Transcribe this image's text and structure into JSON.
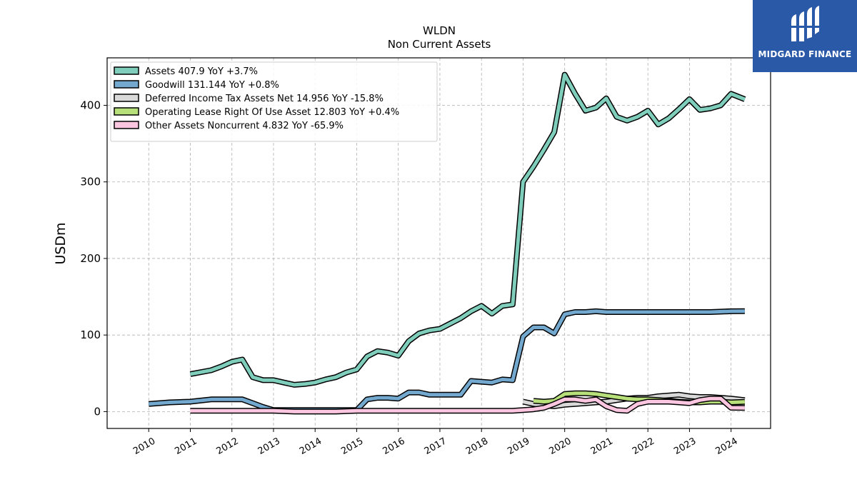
{
  "chart_data": {
    "type": "line",
    "title": "WLDN",
    "subtitle": "Non Current  Assets",
    "ylabel": "USDm",
    "xlabel": "",
    "xlim": [
      2009.0,
      2024.95
    ],
    "ylim": [
      -22,
      462
    ],
    "yticks": [
      0,
      100,
      200,
      300,
      400
    ],
    "xticks": [
      "2010",
      "2011",
      "2012",
      "2013",
      "2014",
      "2015",
      "2016",
      "2017",
      "2018",
      "2019",
      "2020",
      "2021",
      "2022",
      "2023",
      "2024"
    ],
    "grid": true,
    "legend_position": "top-left",
    "series": [
      {
        "name": "Assets  407.9 YoY +3.7%",
        "color": "#7fcdbb",
        "x": [
          2011.0,
          2011.5,
          2011.75,
          2012.0,
          2012.25,
          2012.5,
          2012.75,
          2013.0,
          2013.25,
          2013.5,
          2013.75,
          2014.0,
          2014.25,
          2014.5,
          2014.75,
          2015.0,
          2015.25,
          2015.5,
          2015.75,
          2016.0,
          2016.25,
          2016.5,
          2016.75,
          2017.0,
          2017.25,
          2017.5,
          2017.75,
          2018.0,
          2018.25,
          2018.5,
          2018.75,
          2019.0,
          2019.25,
          2019.5,
          2019.75,
          2020.0,
          2020.25,
          2020.5,
          2020.75,
          2021.0,
          2021.25,
          2021.5,
          2021.75,
          2022.0,
          2022.25,
          2022.5,
          2022.75,
          2023.0,
          2023.25,
          2023.5,
          2023.75,
          2024.0,
          2024.33
        ],
        "y": [
          49,
          54,
          59,
          65,
          68,
          45,
          41,
          41,
          38,
          35,
          36,
          38,
          42,
          45,
          51,
          55,
          72,
          79,
          77,
          73,
          92,
          102,
          106,
          108,
          115,
          122,
          131,
          138,
          128,
          138,
          140,
          300,
          320,
          342,
          365,
          440,
          415,
          393,
          397,
          409,
          385,
          380,
          385,
          393,
          375,
          383,
          395,
          408,
          394,
          396,
          400,
          415,
          407.9
        ]
      },
      {
        "name": "Goodwill  131.144 YoY +0.8%",
        "color": "#74a9cf",
        "x": [
          2010.0,
          2010.5,
          2011.0,
          2011.5,
          2012.0,
          2012.25,
          2012.5,
          2012.75,
          2013.0,
          2013.5,
          2014.0,
          2014.5,
          2015.0,
          2015.25,
          2015.5,
          2015.75,
          2016.0,
          2016.25,
          2016.5,
          2016.75,
          2017.0,
          2017.25,
          2017.5,
          2017.75,
          2018.0,
          2018.25,
          2018.5,
          2018.75,
          2019.0,
          2019.25,
          2019.5,
          2019.75,
          2020.0,
          2020.25,
          2020.5,
          2020.75,
          2021.0,
          2021.5,
          2022.0,
          2022.5,
          2023.0,
          2023.5,
          2024.0,
          2024.33
        ],
        "y": [
          10,
          12,
          13,
          16,
          16,
          16,
          11,
          6,
          2,
          2,
          2,
          2,
          2,
          16,
          18,
          18,
          17,
          25,
          25,
          22,
          22,
          22,
          22,
          40,
          39,
          38,
          42,
          41,
          98,
          110,
          110,
          102,
          127,
          130,
          130,
          131,
          130,
          130,
          130,
          130,
          130,
          130,
          131,
          131.144
        ]
      },
      {
        "name": "Deferred Income Tax Assets Net  14.956 YoY -15.8%",
        "color": "#d9d9d9",
        "x": [
          2019.0,
          2019.25,
          2019.5,
          2019.75,
          2020.0,
          2020.25,
          2020.5,
          2020.75,
          2021.0,
          2021.25,
          2021.5,
          2021.75,
          2022.0,
          2022.25,
          2022.5,
          2022.75,
          2023.0,
          2023.25,
          2023.5,
          2023.75,
          2024.0,
          2024.33
        ],
        "y": [
          13,
          10,
          8,
          7,
          9,
          10,
          11,
          12,
          13,
          15,
          17,
          18,
          18,
          20,
          21,
          22,
          20,
          19,
          19,
          18,
          17,
          14.956
        ]
      },
      {
        "name": "Operating Lease Right Of Use Asset  12.803 YoY +0.4%",
        "color": "#b7e07b",
        "x": [
          2019.25,
          2019.5,
          2019.75,
          2020.0,
          2020.25,
          2020.5,
          2020.75,
          2021.0,
          2021.25,
          2021.5,
          2021.75,
          2022.0,
          2022.25,
          2022.5,
          2022.75,
          2023.0,
          2023.25,
          2023.5,
          2023.75,
          2024.0,
          2024.33
        ],
        "y": [
          14,
          13,
          14,
          23,
          24,
          24,
          23,
          21,
          19,
          17,
          16,
          16,
          15,
          14,
          13,
          12,
          12,
          13,
          13,
          12,
          12.803
        ]
      },
      {
        "name": "Other Assets Noncurrent  4.832 YoY -65.9%",
        "color": "#fcc5e0",
        "x": [
          2011.0,
          2011.5,
          2012.0,
          2012.5,
          2013.0,
          2013.5,
          2014.0,
          2014.5,
          2015.0,
          2015.5,
          2016.0,
          2016.5,
          2017.0,
          2017.5,
          2018.0,
          2018.5,
          2018.75,
          2019.0,
          2019.25,
          2019.5,
          2019.75,
          2020.0,
          2020.25,
          2020.5,
          2020.75,
          2021.0,
          2021.25,
          2021.5,
          2021.75,
          2022.0,
          2022.25,
          2022.5,
          2022.75,
          2023.0,
          2023.25,
          2023.5,
          2023.75,
          2024.0,
          2024.33
        ],
        "y": [
          1,
          1,
          1,
          1,
          1,
          0,
          0,
          0,
          1,
          1,
          1,
          1,
          1,
          1,
          1,
          1,
          1,
          2,
          3,
          5,
          10,
          16,
          16,
          14,
          16,
          7,
          2,
          1,
          10,
          13,
          13,
          13,
          12,
          11,
          15,
          17,
          17,
          5,
          4.832
        ]
      }
    ]
  },
  "logo": {
    "text": "MIDGARD FINANCE",
    "icon": "midgard-logo-icon",
    "background": "#2a59a8"
  }
}
